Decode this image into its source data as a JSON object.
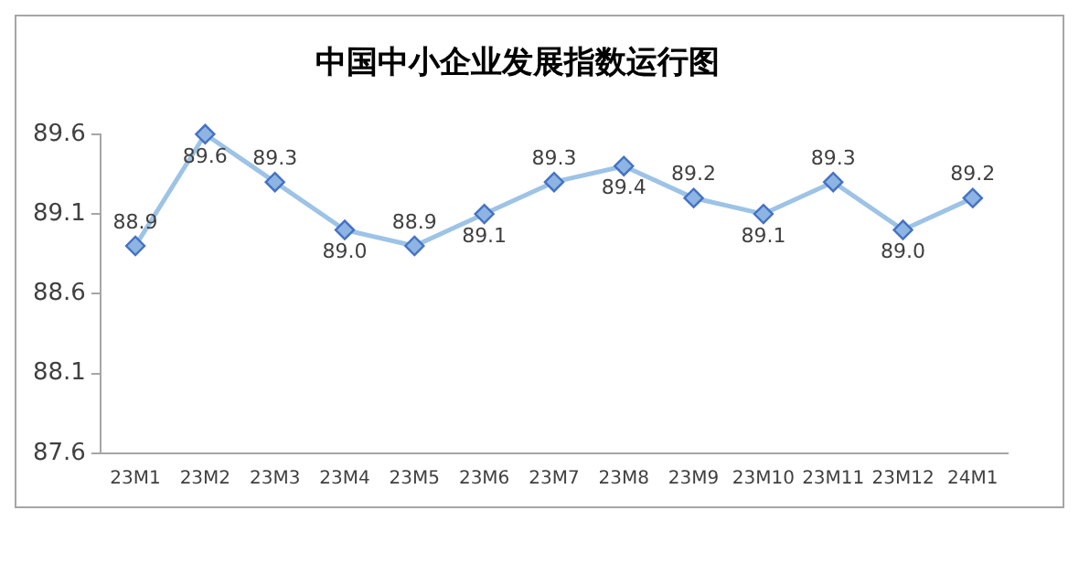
{
  "chart_data": {
    "type": "line",
    "title": "中国中小企业发展指数运行图",
    "categories": [
      "23M1",
      "23M2",
      "23M3",
      "23M4",
      "23M5",
      "23M6",
      "23M7",
      "23M8",
      "23M9",
      "23M10",
      "23M11",
      "23M12",
      "24M1"
    ],
    "series": [
      {
        "color": "#9dc3e6",
        "values": [
          88.9,
          89.6,
          89.3,
          89.0,
          88.9,
          89.1,
          89.3,
          89.4,
          89.2,
          89.1,
          89.3,
          89.0,
          89.2
        ],
        "value_labels": [
          "88.9",
          "89.6",
          "89.3",
          "89.0",
          "88.9",
          "89.1",
          "89.3",
          "89.4",
          "89.2",
          "89.1",
          "89.3",
          "89.0",
          "89.2"
        ]
      }
    ],
    "ylim": [
      87.6,
      89.6
    ],
    "yticks": [
      87.6,
      88.1,
      88.6,
      89.1,
      89.6
    ],
    "grid": false,
    "legend": false,
    "marker": "diamond",
    "line_style": "solid"
  }
}
